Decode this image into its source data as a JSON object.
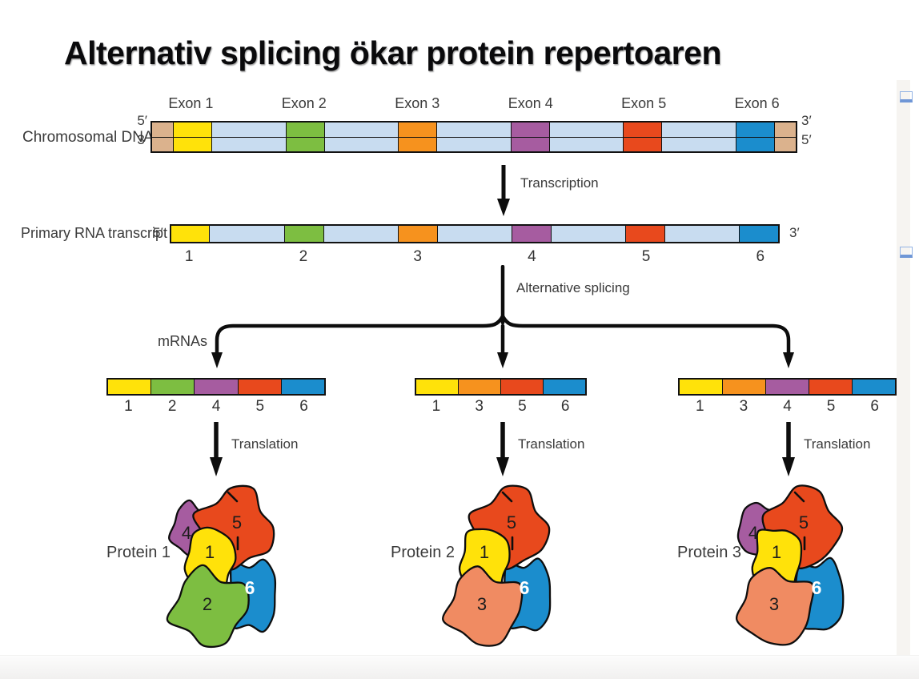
{
  "title": "Alternativ splicing ökar protein repertoaren",
  "palette": {
    "exon_colors": {
      "1": "#FFE20A",
      "2": "#7DBE41",
      "3": "#F6921E",
      "4": "#A65CA0",
      "5": "#E8491D",
      "6": "#1B8DCD"
    },
    "protein_colors": {
      "1": "#FFE20A",
      "2": "#7DBE41",
      "3": "#F08B62",
      "4": "#A65CA0",
      "5": "#E8491D",
      "6": "#1B8DCD"
    },
    "intron": "#C8DCF0",
    "cap": "#DBB28D",
    "marker": "#b9cef2"
  },
  "dna_section": {
    "label": "Chromosomal DNA",
    "left_ends": [
      "5′",
      "3′"
    ],
    "right_ends": [
      "3′",
      "5′"
    ],
    "exon_labels": [
      "Exon 1",
      "Exon 2",
      "Exon 3",
      "Exon 4",
      "Exon 5",
      "Exon 6"
    ]
  },
  "arrows": {
    "transcription": "Transcription",
    "splicing": "Alternative splicing",
    "translation": "Translation"
  },
  "rna_section": {
    "label": "Primary RNA transcript",
    "left_end": "5′",
    "right_end": "3′",
    "exon_numbers": [
      "1",
      "2",
      "3",
      "4",
      "5",
      "6"
    ]
  },
  "mrna_section": {
    "group_label": "mRNAs",
    "mrnas": [
      {
        "exons": [
          "1",
          "2",
          "4",
          "5",
          "6"
        ]
      },
      {
        "exons": [
          "1",
          "3",
          "5",
          "6"
        ]
      },
      {
        "exons": [
          "1",
          "3",
          "4",
          "5",
          "6"
        ]
      }
    ]
  },
  "proteins": [
    {
      "label": "Protein 1",
      "subunits": [
        "4",
        "5",
        "1",
        "2",
        "6"
      ]
    },
    {
      "label": "Protein 2",
      "subunits": [
        "5",
        "1",
        "3",
        "6"
      ]
    },
    {
      "label": "Protein 3",
      "subunits": [
        "4",
        "5",
        "1",
        "3",
        "6"
      ]
    }
  ]
}
